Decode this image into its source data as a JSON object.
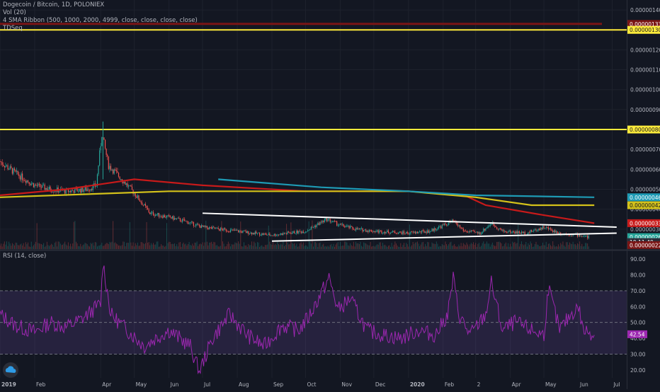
{
  "legend": {
    "line1": "Dogecoin / Bitcoin, 1D, POLONIEX",
    "line2": "Vol (20)",
    "line3": "4 SMA Ribbon (500, 1000, 2000, 4999, close, close, close, close)",
    "line4": "TDSeq"
  },
  "rsi_legend": "RSI (14, close)",
  "icons": {
    "logo": "tradingview-cloud-icon"
  },
  "colors": {
    "background": "#131722",
    "grid": "#1e222d",
    "text": "#b2b5be",
    "up": "#26a69a",
    "down": "#ef5350",
    "hline_yellow": "#ffeb3b",
    "hline_darkred": "#7a1515",
    "sma_red": "#c81a1a",
    "sma_yellow": "#d4c21a",
    "sma_teal": "#1e9bb5",
    "trendline": "#ffffff",
    "rsi": "#9c27b0",
    "rsi_band": "rgba(126,87,194,0.18)"
  },
  "chart_data": [
    {
      "type": "candlestick",
      "title": "Dogecoin / Bitcoin, 1D, POLONIEX",
      "ylim": [
        2e-07,
        1.45e-06
      ],
      "y_ticks": [
        "0.00000140",
        "0.00000130",
        "0.00000120",
        "0.00000110",
        "0.00000100",
        "0.00000090",
        "0.00000080",
        "0.00000070",
        "0.00000060",
        "0.00000050",
        "0.00000040",
        "0.00000030"
      ],
      "x_ticks": [
        "2019",
        "Feb",
        "Apr",
        "May",
        "Jun",
        "Jul",
        "Aug",
        "Sep",
        "Oct",
        "Nov",
        "Dec",
        "2020",
        "Feb",
        "2",
        "Apr",
        "May",
        "Jun",
        "Jul"
      ],
      "price_path": [
        [
          "2019-01-01",
          6.4e-07
        ],
        [
          "2019-01-15",
          5.8e-07
        ],
        [
          "2019-02-01",
          5.2e-07
        ],
        [
          "2019-02-15",
          5e-07
        ],
        [
          "2019-03-01",
          4.9e-07
        ],
        [
          "2019-03-20",
          5e-07
        ],
        [
          "2019-03-28",
          5.2e-07
        ],
        [
          "2019-04-02",
          7.8e-07
        ],
        [
          "2019-04-08",
          6.2e-07
        ],
        [
          "2019-04-20",
          5.5e-07
        ],
        [
          "2019-05-01",
          4.8e-07
        ],
        [
          "2019-05-15",
          3.8e-07
        ],
        [
          "2019-06-01",
          3.6e-07
        ],
        [
          "2019-06-15",
          3.4e-07
        ],
        [
          "2019-07-01",
          3.1e-07
        ],
        [
          "2019-07-15",
          3e-07
        ],
        [
          "2019-08-01",
          2.9e-07
        ],
        [
          "2019-08-15",
          2.8e-07
        ],
        [
          "2019-09-01",
          2.7e-07
        ],
        [
          "2019-09-15",
          2.8e-07
        ],
        [
          "2019-10-01",
          2.9e-07
        ],
        [
          "2019-10-20",
          3.5e-07
        ],
        [
          "2019-11-01",
          3.2e-07
        ],
        [
          "2019-11-15",
          3e-07
        ],
        [
          "2019-12-01",
          2.9e-07
        ],
        [
          "2020-01-01",
          2.8e-07
        ],
        [
          "2020-01-20",
          2.9e-07
        ],
        [
          "2020-02-10",
          3.4e-07
        ],
        [
          "2020-02-20",
          2.9e-07
        ],
        [
          "2020-03-05",
          2.8e-07
        ],
        [
          "2020-03-15",
          3.3e-07
        ],
        [
          "2020-03-25",
          2.9e-07
        ],
        [
          "2020-04-15",
          2.8e-07
        ],
        [
          "2020-05-01",
          3.1e-07
        ],
        [
          "2020-05-15",
          2.8e-07
        ],
        [
          "2020-06-01",
          2.7e-07
        ],
        [
          "2020-06-10",
          2.6e-07
        ]
      ],
      "series": [
        {
          "name": "SMA 500",
          "color": "#c81a1a",
          "values": [
            [
              "2019-01-01",
              4.7e-07
            ],
            [
              "2019-03-01",
              5e-07
            ],
            [
              "2019-05-01",
              5.5e-07
            ],
            [
              "2019-07-01",
              5.2e-07
            ],
            [
              "2019-10-01",
              4.9e-07
            ],
            [
              "2020-01-01",
              4.9e-07
            ],
            [
              "2020-02-20",
              4.7e-07
            ],
            [
              "2020-03-10",
              4.2e-07
            ],
            [
              "2020-05-01",
              3.7e-07
            ],
            [
              "2020-06-15",
              3.3e-07
            ]
          ]
        },
        {
          "name": "SMA 1000",
          "color": "#d4c21a",
          "values": [
            [
              "2019-01-01",
              4.6e-07
            ],
            [
              "2019-06-01",
              4.9e-07
            ],
            [
              "2019-10-01",
              4.9e-07
            ],
            [
              "2020-01-01",
              4.9e-07
            ],
            [
              "2020-03-01",
              4.6e-07
            ],
            [
              "2020-04-20",
              4.2e-07
            ],
            [
              "2020-06-15",
              4.2e-07
            ]
          ]
        },
        {
          "name": "SMA 2000",
          "color": "#1e9bb5",
          "values": [
            [
              "2019-07-15",
              5.5e-07
            ],
            [
              "2019-10-15",
              5.1e-07
            ],
            [
              "2020-01-01",
              4.9e-07
            ],
            [
              "2020-03-01",
              4.7e-07
            ],
            [
              "2020-06-15",
              4.6e-07
            ]
          ]
        }
      ],
      "horizontal_lines": [
        {
          "value": 1.3e-06,
          "color": "#ffeb3b"
        },
        {
          "value": 1.33e-06,
          "color": "#7a1515"
        },
        {
          "value": 8e-07,
          "color": "#ffeb3b"
        }
      ],
      "trendlines": [
        {
          "from": [
            "2019-07-01",
            3.8e-07
          ],
          "to": [
            "2020-07-05",
            3.1e-07
          ]
        },
        {
          "from": [
            "2019-09-01",
            2.4e-07
          ],
          "to": [
            "2020-07-05",
            2.8e-07
          ]
        }
      ],
      "price_labels": [
        {
          "text": "0.00000133",
          "value": 1.33e-06,
          "bg": "#7a1515"
        },
        {
          "text": "0.00000130",
          "value": 1.3e-06,
          "bg": "#ffeb3b"
        },
        {
          "text": "0.00000080",
          "value": 8e-07,
          "bg": "#ffeb3b"
        },
        {
          "text": "0.00000046",
          "value": 4.6e-07,
          "bg": "#1e9bb5"
        },
        {
          "text": "0.00000042",
          "value": 4.2e-07,
          "bg": "#d4c21a"
        },
        {
          "text": "0.00000033",
          "value": 3.3e-07,
          "bg": "#c81a1a"
        },
        {
          "text": "0.00000026",
          "value": 2.6e-07,
          "bg": "#26a69a"
        },
        {
          "text": "10:11:40",
          "value": 2.35e-07,
          "bg": "#2a2e39"
        },
        {
          "text": "0.00000022",
          "value": 2.2e-07,
          "bg": "#7a1515"
        }
      ]
    },
    {
      "type": "line",
      "title": "RSI (14, close)",
      "ylim": [
        15,
        95
      ],
      "y_ticks": [
        "90.00",
        "80.00",
        "70.00",
        "60.00",
        "50.00",
        "40.00",
        "30.00",
        "20.00"
      ],
      "band": [
        30,
        70
      ],
      "current": "42.54",
      "series": [
        {
          "name": "RSI",
          "color": "#9c27b0",
          "values": [
            [
              "2019-01-01",
              55
            ],
            [
              "2019-01-15",
              48
            ],
            [
              "2019-02-01",
              44
            ],
            [
              "2019-02-15",
              50
            ],
            [
              "2019-03-01",
              47
            ],
            [
              "2019-03-15",
              52
            ],
            [
              "2019-04-01",
              62
            ],
            [
              "2019-04-03",
              88
            ],
            [
              "2019-04-10",
              55
            ],
            [
              "2019-04-25",
              45
            ],
            [
              "2019-05-10",
              35
            ],
            [
              "2019-05-20",
              40
            ],
            [
              "2019-06-01",
              45
            ],
            [
              "2019-06-20",
              35
            ],
            [
              "2019-06-28",
              19
            ],
            [
              "2019-07-10",
              40
            ],
            [
              "2019-07-25",
              55
            ],
            [
              "2019-08-10",
              42
            ],
            [
              "2019-08-25",
              35
            ],
            [
              "2019-09-10",
              48
            ],
            [
              "2019-09-25",
              45
            ],
            [
              "2019-10-05",
              55
            ],
            [
              "2019-10-22",
              78
            ],
            [
              "2019-10-30",
              58
            ],
            [
              "2019-11-10",
              65
            ],
            [
              "2019-11-25",
              45
            ],
            [
              "2019-12-10",
              42
            ],
            [
              "2019-12-25",
              40
            ],
            [
              "2020-01-10",
              45
            ],
            [
              "2020-01-25",
              42
            ],
            [
              "2020-02-05",
              55
            ],
            [
              "2020-02-10",
              78
            ],
            [
              "2020-02-15",
              55
            ],
            [
              "2020-02-25",
              42
            ],
            [
              "2020-03-10",
              55
            ],
            [
              "2020-03-15",
              75
            ],
            [
              "2020-03-25",
              45
            ],
            [
              "2020-04-05",
              50
            ],
            [
              "2020-04-20",
              45
            ],
            [
              "2020-05-01",
              42
            ],
            [
              "2020-05-05",
              72
            ],
            [
              "2020-05-15",
              45
            ],
            [
              "2020-05-25",
              55
            ],
            [
              "2020-06-01",
              60
            ],
            [
              "2020-06-05",
              45
            ],
            [
              "2020-06-15",
              43
            ]
          ]
        }
      ]
    }
  ]
}
